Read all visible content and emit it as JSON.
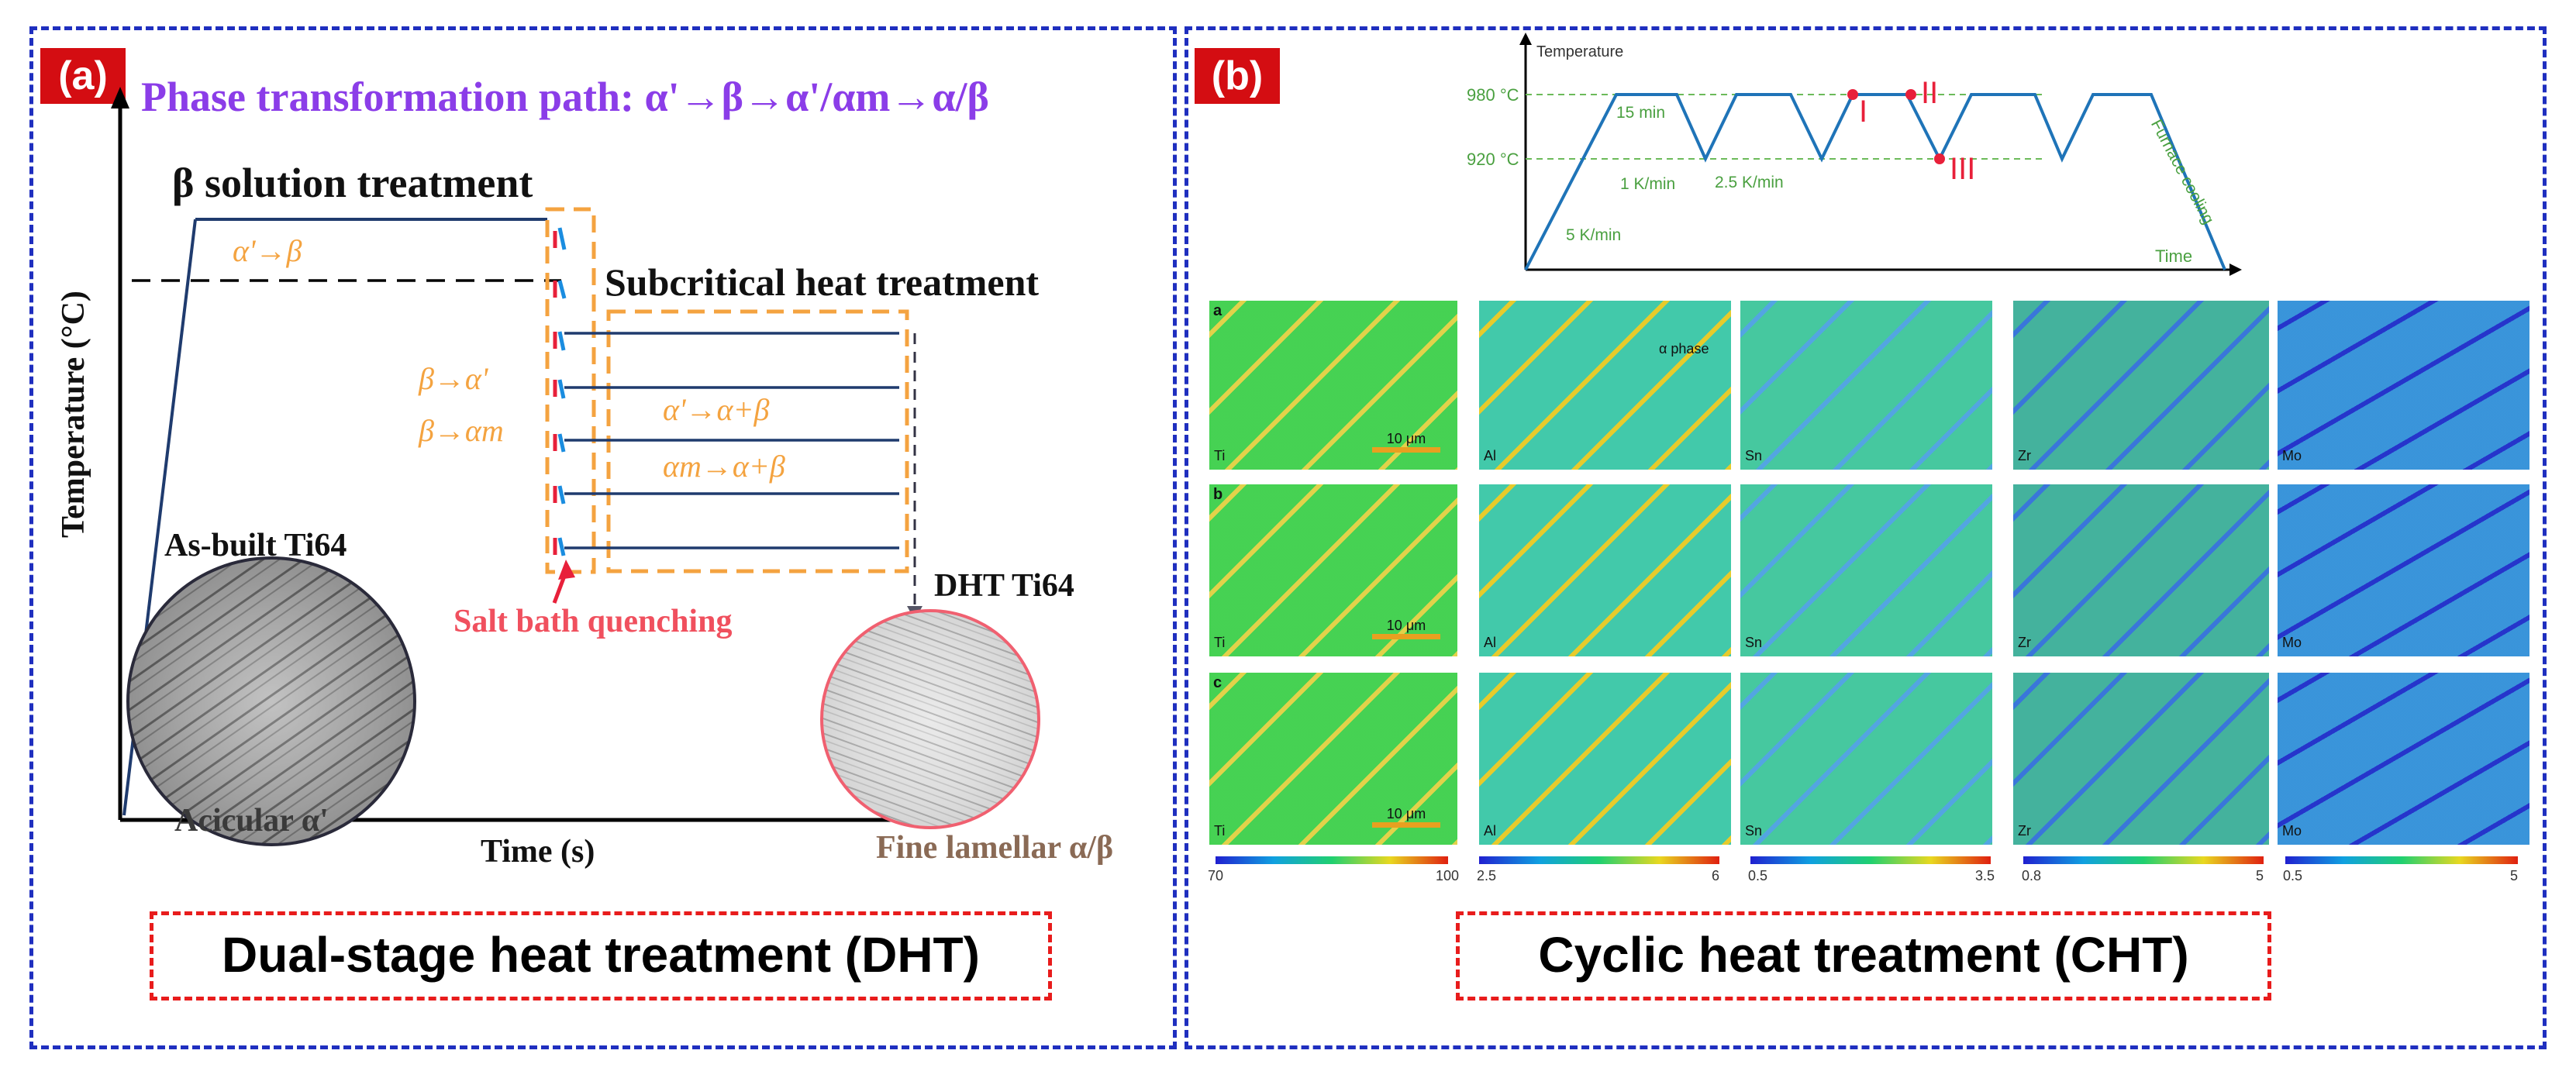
{
  "panel_a": {
    "tag": "(a)",
    "path_title": "Phase transformation path: α'→β→α'/αm→α/β",
    "beta_solution": "β solution treatment",
    "subcritical": "Subcritical heat treatment",
    "alpha_to_beta": "α'→β",
    "beta_to_alpha_prime": "β→α'",
    "beta_to_alpha_m": "β→αm",
    "alpha_prime_to_ab": "α'→α+β",
    "alpha_m_to_ab": "αm→α+β",
    "ylabel": "Temperature (°C)",
    "xlabel": "Time (s)",
    "as_built": "As-built Ti64",
    "acicular": "Acicular α'",
    "dht_ti64": "DHT Ti64",
    "fine_lamellar": "Fine lamellar α/β",
    "salt_bath": "Salt bath quenching",
    "caption": "Dual-stage heat treatment (DHT)"
  },
  "panel_b": {
    "tag": "(b)",
    "temp_label": "Temperature",
    "time_label": "Time",
    "t980": "980 °C",
    "t920": "920 °C",
    "hold": "15 min",
    "rate1": "1 K/min",
    "rate2": "2.5 K/min",
    "rate3": "5 K/min",
    "furnace": "Furnace cooling",
    "mark_I": "I",
    "mark_II": "II",
    "mark_III": "III",
    "rows": [
      "a",
      "b",
      "c"
    ],
    "elements": [
      "Ti",
      "Al",
      "Sn",
      "Zr",
      "Mo"
    ],
    "alpha_phase": "α phase",
    "scale": "10 μm",
    "colorbars": [
      {
        "min": "70",
        "max": "100"
      },
      {
        "min": "2.5",
        "max": "6"
      },
      {
        "min": "0.5",
        "max": "3.5"
      },
      {
        "min": "0.8",
        "max": "5"
      },
      {
        "min": "0.5",
        "max": "5"
      }
    ],
    "caption": "Cyclic heat treatment (CHT)"
  }
}
